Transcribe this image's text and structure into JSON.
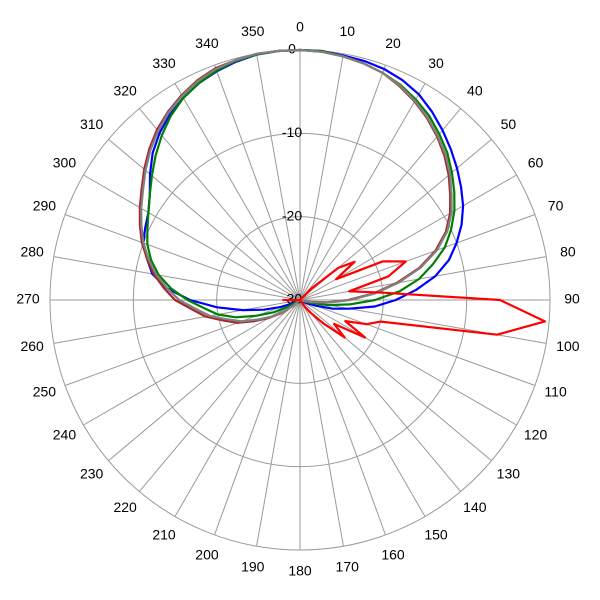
{
  "chart_data": {
    "type": "polar-line",
    "x": [
      0,
      5,
      10,
      15,
      20,
      25,
      30,
      35,
      40,
      45,
      50,
      55,
      60,
      65,
      70,
      75,
      80,
      85,
      90,
      95,
      100,
      105,
      110,
      115,
      120,
      125,
      130,
      135,
      140,
      145,
      150,
      155,
      160,
      165,
      170,
      175,
      180,
      185,
      190,
      195,
      200,
      205,
      210,
      215,
      220,
      225,
      230,
      235,
      240,
      245,
      250,
      255,
      260,
      265,
      270,
      275,
      280,
      285,
      290,
      295,
      300,
      305,
      310,
      315,
      320,
      325,
      330,
      335,
      340,
      345,
      350,
      355
    ],
    "xticks": [
      0,
      10,
      20,
      30,
      40,
      50,
      60,
      70,
      80,
      90,
      100,
      110,
      120,
      130,
      140,
      150,
      160,
      170,
      180,
      190,
      200,
      210,
      220,
      230,
      240,
      250,
      260,
      270,
      280,
      290,
      300,
      310,
      320,
      330,
      340,
      350
    ],
    "ylim": [
      -30,
      0
    ],
    "yticks": [
      -30,
      -20,
      -10,
      0
    ],
    "grid": true,
    "series": [
      {
        "color": "#0000ff",
        "values": [
          0,
          0,
          -0.2,
          -0.3,
          -0.5,
          -0.9,
          -1.5,
          -2.4,
          -3.4,
          -4.4,
          -5.4,
          -6.4,
          -7.4,
          -8.6,
          -10,
          -11.5,
          -13.5,
          -16,
          -18.5,
          -21,
          -24,
          -26,
          -28,
          -29,
          -29.5,
          -30,
          -30,
          -30,
          -30,
          -30,
          -30,
          -30,
          -30,
          -30,
          -30,
          -30,
          -30,
          -30,
          -30,
          -30,
          -30,
          -30,
          -30,
          -30,
          -30,
          -30,
          -30,
          -30,
          -30,
          -29,
          -27.5,
          -25.5,
          -23,
          -20,
          -16.8,
          -14,
          -12,
          -11,
          -10,
          -9.5,
          -9,
          -8,
          -6.5,
          -5,
          -3.8,
          -2.8,
          -2,
          -1.3,
          -0.8,
          -0.4,
          -0.1,
          0
        ]
      },
      {
        "color": "#008000",
        "values": [
          0,
          0,
          -0.3,
          -0.6,
          -1,
          -1.5,
          -2.2,
          -3,
          -4,
          -5,
          -6.2,
          -7.4,
          -8.6,
          -10,
          -11.5,
          -13.5,
          -15.5,
          -18,
          -21,
          -24,
          -26.5,
          -28.5,
          -29.5,
          -30,
          -30,
          -30,
          -30,
          -30,
          -30,
          -30,
          -30,
          -30,
          -30,
          -30,
          -30,
          -30,
          -30,
          -30,
          -30,
          -30,
          -30,
          -30,
          -30,
          -30,
          -30,
          -30,
          -30,
          -30,
          -28.5,
          -26.5,
          -24.5,
          -22,
          -20,
          -18.5,
          -16.5,
          -14.5,
          -12.8,
          -11.5,
          -10.5,
          -9.8,
          -9,
          -8,
          -6.8,
          -5.5,
          -4.2,
          -3,
          -2,
          -1.3,
          -0.7,
          -0.3,
          -0.1,
          0
        ]
      },
      {
        "color": "#a52a2a",
        "values": [
          0,
          -0.1,
          -0.3,
          -0.6,
          -1,
          -1.7,
          -2.5,
          -3.4,
          -4.4,
          -5.5,
          -6.7,
          -8,
          -9.2,
          -10.7,
          -12.7,
          -15.2,
          -18.2,
          -21.2,
          -24.2,
          -26.7,
          -28.7,
          -29.6,
          -30,
          -30,
          -30,
          -30,
          -30,
          -30,
          -30,
          -30,
          -30,
          -30,
          -30,
          -30,
          -30,
          -30,
          -30,
          -30,
          -30,
          -30,
          -30,
          -30,
          -30,
          -30,
          -30,
          -30,
          -29,
          -27.2,
          -25.7,
          -24,
          -22,
          -20.5,
          -18.5,
          -17,
          -15,
          -13.6,
          -12.2,
          -11,
          -9.8,
          -8.8,
          -7.8,
          -6.8,
          -5.6,
          -4.4,
          -3.3,
          -2.4,
          -1.6,
          -0.9,
          -0.4,
          -0.2,
          0,
          0
        ]
      },
      {
        "color": "#808080",
        "values": [
          0,
          -0.1,
          -0.3,
          -0.6,
          -1,
          -1.6,
          -2.4,
          -3.3,
          -4.3,
          -5.3,
          -6.5,
          -7.8,
          -9,
          -10.5,
          -12.5,
          -15,
          -18,
          -21,
          -24,
          -26.5,
          -28.5,
          -29.5,
          -30,
          -30,
          -30,
          -30,
          -30,
          -30,
          -30,
          -30,
          -30,
          -30,
          -30,
          -30,
          -30,
          -30,
          -30,
          -30,
          -30,
          -30,
          -30,
          -30,
          -30,
          -30,
          -30,
          -30,
          -29,
          -27.5,
          -26,
          -24.5,
          -22.5,
          -21,
          -19,
          -17.5,
          -15.5,
          -14,
          -12.5,
          -11.2,
          -10,
          -9,
          -8,
          -7,
          -5.8,
          -4.6,
          -3.5,
          -2.5,
          -1.7,
          -1,
          -0.5,
          -0.2,
          0,
          0
        ]
      },
      {
        "color": "#ff0000",
        "values": [
          -30,
          -30,
          -30,
          -30,
          -30,
          -30,
          -30,
          -30,
          -30,
          -28,
          -24,
          -22,
          -25,
          -19,
          -16.5,
          -19,
          -24,
          -20,
          -6,
          -0.5,
          -6,
          -20,
          -21.5,
          -24,
          -21,
          -25,
          -23,
          -26,
          -28,
          -29,
          -30,
          -30,
          -30,
          -30,
          -30,
          -30,
          -30,
          -30,
          -30,
          -30,
          -30,
          -30,
          -30,
          -30,
          -30,
          -30,
          -30,
          -30,
          -30,
          -30,
          -30,
          -30,
          -30,
          -30,
          -28,
          -30,
          -30,
          -30,
          -30,
          -30,
          -30,
          -30,
          -30,
          -30,
          -30,
          -30,
          -30,
          -30,
          -30,
          -30,
          -30,
          -30
        ]
      }
    ]
  }
}
